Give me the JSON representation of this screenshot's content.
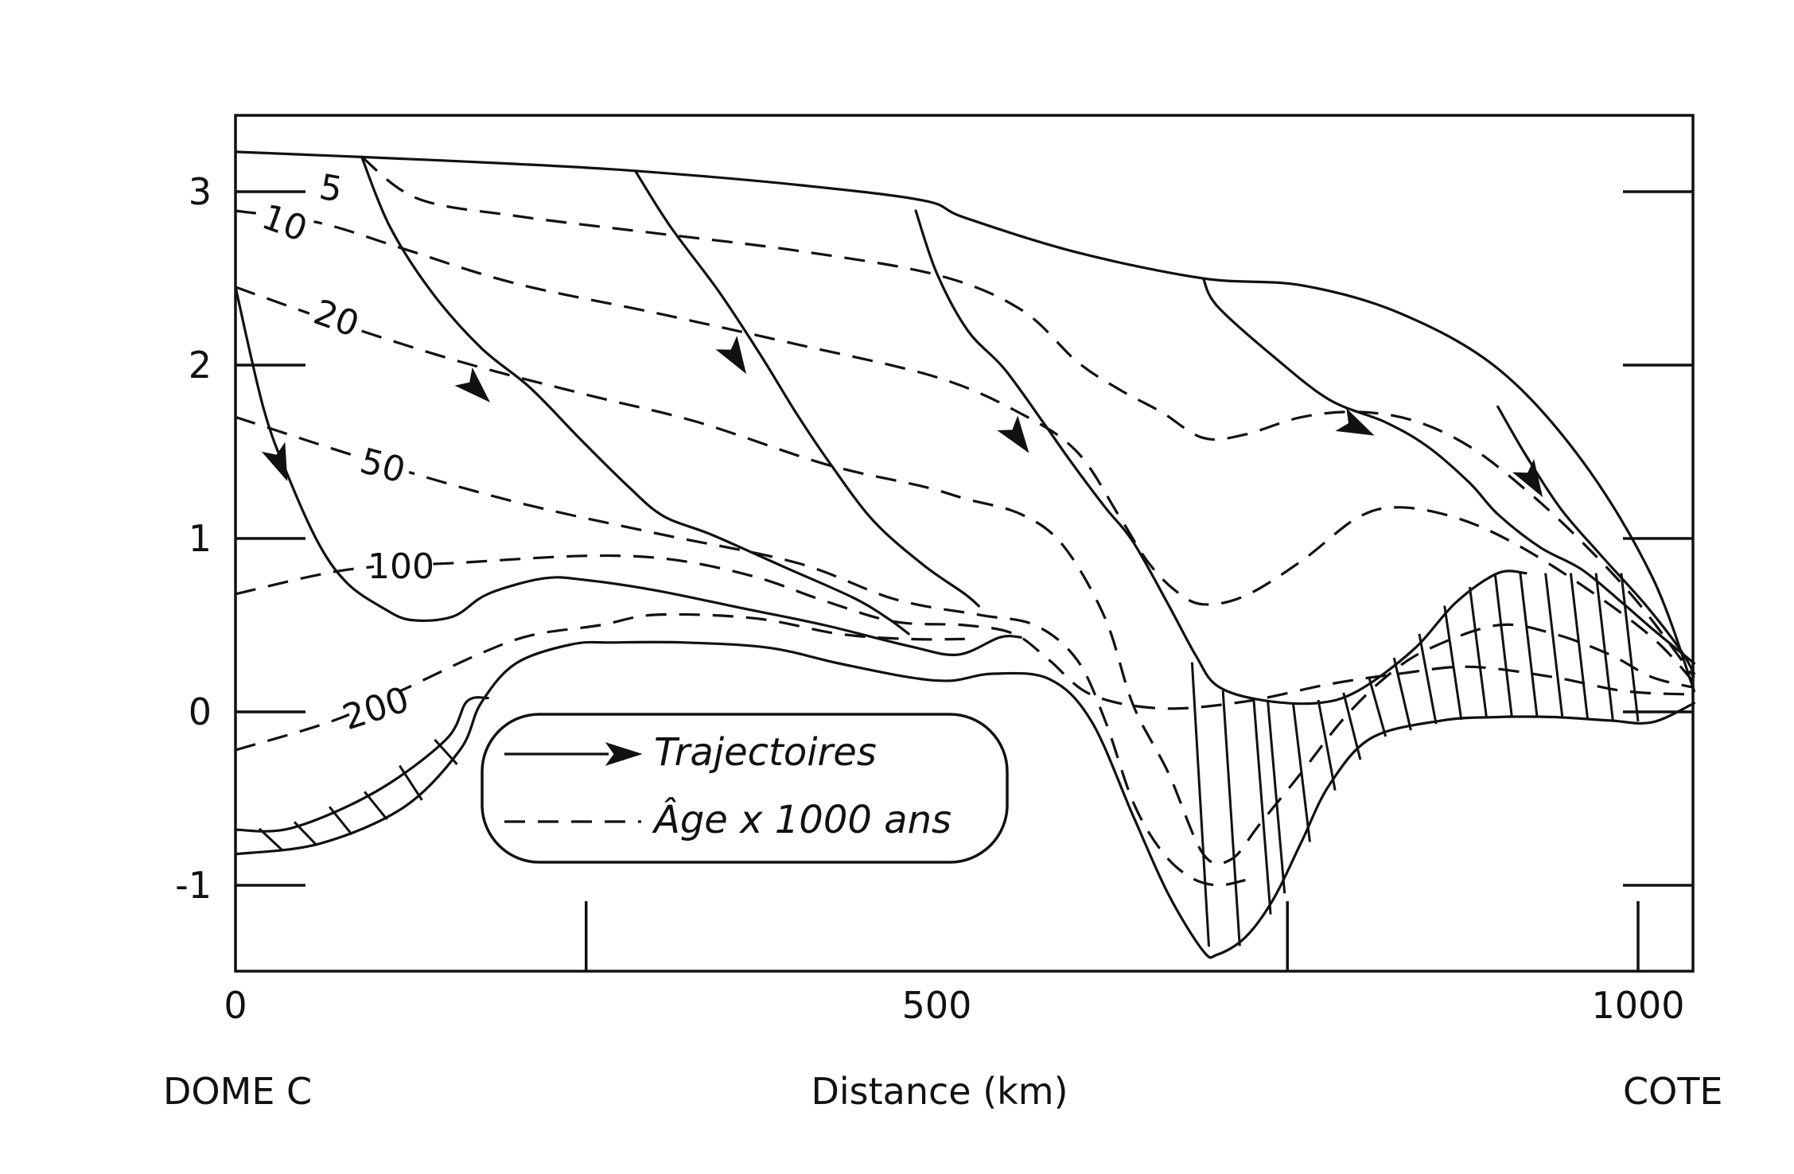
{
  "chart_data": {
    "type": "line",
    "title": "",
    "xlabel": "Distance (km)",
    "ylabel": "",
    "xlim": [
      0,
      1040
    ],
    "ylim": [
      -1.55,
      3.4
    ],
    "x_ticks": [
      0,
      500,
      1000
    ],
    "y_ticks": [
      3,
      2,
      1,
      0,
      -1
    ],
    "x_minor_ticks": [
      250,
      750,
      1000
    ],
    "location_labels": {
      "left": "DOME C",
      "right": "COTE"
    },
    "legend": {
      "placement": "bottom-center",
      "entries": [
        {
          "style": "solid-arrow",
          "label": "Trajectoires"
        },
        {
          "style": "dashed",
          "label": "Âge x 1000 ans"
        }
      ]
    },
    "surface": [
      [
        0,
        3.23
      ],
      [
        90,
        3.2
      ],
      [
        200,
        3.16
      ],
      [
        285,
        3.12
      ],
      [
        400,
        3.04
      ],
      [
        490,
        2.95
      ],
      [
        520,
        2.85
      ],
      [
        600,
        2.65
      ],
      [
        690,
        2.5
      ],
      [
        760,
        2.46
      ],
      [
        830,
        2.3
      ],
      [
        900,
        1.98
      ],
      [
        960,
        1.45
      ],
      [
        1010,
        0.78
      ],
      [
        1040,
        0.12
      ]
    ],
    "bedrock": [
      [
        0,
        -0.82
      ],
      [
        60,
        -0.76
      ],
      [
        120,
        -0.55
      ],
      [
        160,
        -0.22
      ],
      [
        175,
        0.05
      ],
      [
        200,
        0.28
      ],
      [
        240,
        0.39
      ],
      [
        270,
        0.4
      ],
      [
        320,
        0.4
      ],
      [
        380,
        0.37
      ],
      [
        430,
        0.28
      ],
      [
        480,
        0.2
      ],
      [
        510,
        0.18
      ],
      [
        540,
        0.22
      ],
      [
        580,
        0.19
      ],
      [
        610,
        -0.05
      ],
      [
        640,
        -0.6
      ],
      [
        665,
        -1.05
      ],
      [
        690,
        -1.38
      ],
      [
        700,
        -1.4
      ],
      [
        720,
        -1.3
      ],
      [
        740,
        -1.08
      ],
      [
        760,
        -0.75
      ],
      [
        780,
        -0.42
      ],
      [
        810,
        -0.15
      ],
      [
        860,
        -0.05
      ],
      [
        900,
        -0.03
      ],
      [
        940,
        -0.03
      ],
      [
        980,
        -0.05
      ],
      [
        1010,
        -0.06
      ],
      [
        1040,
        0.05
      ]
    ],
    "basal_layer": [
      [
        0,
        -0.68
      ],
      [
        40,
        -0.67
      ],
      [
        100,
        -0.46
      ],
      [
        150,
        -0.16
      ],
      [
        165,
        0.06
      ],
      [
        180,
        0.08
      ]
    ],
    "trajectories": [
      {
        "points": [
          [
            0,
            2.45
          ],
          [
            20,
            1.75
          ],
          [
            38,
            1.35
          ],
          [
            60,
            0.96
          ],
          [
            80,
            0.74
          ],
          [
            105,
            0.6
          ],
          [
            125,
            0.53
          ],
          [
            155,
            0.55
          ],
          [
            180,
            0.68
          ],
          [
            220,
            0.77
          ],
          [
            250,
            0.76
          ],
          [
            300,
            0.7
          ],
          [
            360,
            0.6
          ],
          [
            420,
            0.5
          ],
          [
            480,
            0.38
          ],
          [
            515,
            0.33
          ],
          [
            545,
            0.43
          ],
          [
            560,
            0.43
          ]
        ],
        "arrow_at": [
          32,
          1.43
        ]
      },
      {
        "points": [
          [
            90,
            3.2
          ],
          [
            110,
            2.8
          ],
          [
            140,
            2.42
          ],
          [
            175,
            2.1
          ],
          [
            210,
            1.87
          ],
          [
            245,
            1.58
          ],
          [
            280,
            1.3
          ],
          [
            305,
            1.13
          ],
          [
            340,
            1.02
          ],
          [
            390,
            0.84
          ],
          [
            440,
            0.66
          ],
          [
            465,
            0.54
          ],
          [
            480,
            0.45
          ]
        ],
        "arrow_at": [
          172,
          1.86
        ]
      },
      {
        "points": [
          [
            285,
            3.12
          ],
          [
            310,
            2.8
          ],
          [
            345,
            2.42
          ],
          [
            375,
            2.05
          ],
          [
            400,
            1.72
          ],
          [
            425,
            1.42
          ],
          [
            455,
            1.1
          ],
          [
            490,
            0.85
          ],
          [
            520,
            0.68
          ],
          [
            530,
            0.61
          ]
        ],
        "arrow_at": [
          357,
          2.04
        ]
      },
      {
        "points": [
          [
            485,
            2.89
          ],
          [
            500,
            2.53
          ],
          [
            522,
            2.2
          ],
          [
            548,
            1.98
          ],
          [
            575,
            1.68
          ],
          [
            595,
            1.45
          ],
          [
            620,
            1.18
          ],
          [
            640,
            0.98
          ],
          [
            665,
            0.62
          ],
          [
            685,
            0.32
          ],
          [
            700,
            0.15
          ],
          [
            730,
            0.07
          ],
          [
            770,
            0.05
          ],
          [
            800,
            0.12
          ],
          [
            840,
            0.36
          ],
          [
            870,
            0.63
          ],
          [
            900,
            0.8
          ],
          [
            920,
            0.8
          ]
        ],
        "arrow_at": [
          558,
          1.58
        ]
      },
      {
        "points": [
          [
            690,
            2.5
          ],
          [
            700,
            2.34
          ],
          [
            740,
            2.05
          ],
          [
            780,
            1.8
          ],
          [
            820,
            1.67
          ],
          [
            850,
            1.53
          ],
          [
            880,
            1.32
          ],
          [
            900,
            1.14
          ],
          [
            930,
            0.95
          ],
          [
            960,
            0.82
          ],
          [
            990,
            0.62
          ],
          [
            1010,
            0.48
          ],
          [
            1040,
            0.28
          ]
        ],
        "arrow_at": [
          800,
          1.64
        ]
      },
      {
        "points": [
          [
            900,
            1.76
          ],
          [
            920,
            1.48
          ],
          [
            945,
            1.17
          ],
          [
            975,
            0.89
          ],
          [
            1005,
            0.62
          ],
          [
            1030,
            0.36
          ],
          [
            1040,
            0.22
          ]
        ],
        "arrow_at": [
          925,
          1.33
        ]
      }
    ],
    "isochrones": [
      {
        "label": "5",
        "points": [
          [
            90,
            3.2
          ],
          [
            130,
            2.96
          ],
          [
            200,
            2.86
          ],
          [
            300,
            2.76
          ],
          [
            400,
            2.66
          ],
          [
            500,
            2.52
          ],
          [
            560,
            2.32
          ],
          [
            600,
            2.02
          ],
          [
            630,
            1.86
          ],
          [
            660,
            1.73
          ],
          [
            690,
            1.58
          ],
          [
            720,
            1.6
          ],
          [
            760,
            1.7
          ],
          [
            800,
            1.73
          ],
          [
            840,
            1.68
          ],
          [
            880,
            1.53
          ],
          [
            920,
            1.28
          ],
          [
            960,
            0.98
          ],
          [
            1000,
            0.63
          ],
          [
            1040,
            0.2
          ]
        ]
      },
      {
        "label": "10",
        "points": [
          [
            0,
            2.89
          ],
          [
            60,
            2.82
          ],
          [
            120,
            2.67
          ],
          [
            200,
            2.47
          ],
          [
            300,
            2.3
          ],
          [
            400,
            2.12
          ],
          [
            500,
            1.93
          ],
          [
            560,
            1.72
          ],
          [
            600,
            1.5
          ],
          [
            630,
            1.13
          ],
          [
            650,
            0.87
          ],
          [
            670,
            0.7
          ],
          [
            690,
            0.62
          ],
          [
            720,
            0.67
          ],
          [
            760,
            0.87
          ],
          [
            800,
            1.12
          ],
          [
            830,
            1.18
          ],
          [
            870,
            1.12
          ],
          [
            910,
            0.98
          ],
          [
            960,
            0.73
          ],
          [
            1010,
            0.43
          ],
          [
            1040,
            0.17
          ]
        ]
      },
      {
        "label": "20",
        "points": [
          [
            0,
            2.45
          ],
          [
            70,
            2.25
          ],
          [
            160,
            2.02
          ],
          [
            250,
            1.83
          ],
          [
            330,
            1.67
          ],
          [
            420,
            1.43
          ],
          [
            490,
            1.3
          ],
          [
            520,
            1.23
          ],
          [
            560,
            1.14
          ],
          [
            590,
            0.96
          ],
          [
            620,
            0.54
          ],
          [
            640,
            0.04
          ],
          [
            665,
            -0.35
          ],
          [
            690,
            -0.82
          ],
          [
            710,
            -0.85
          ],
          [
            730,
            -0.65
          ],
          [
            760,
            -0.35
          ],
          [
            790,
            -0.04
          ],
          [
            820,
            0.2
          ],
          [
            850,
            0.36
          ],
          [
            900,
            0.5
          ],
          [
            940,
            0.45
          ],
          [
            980,
            0.33
          ],
          [
            1010,
            0.2
          ],
          [
            1040,
            0.14
          ]
        ]
      },
      {
        "label": "50",
        "points": [
          [
            0,
            1.7
          ],
          [
            100,
            1.44
          ],
          [
            200,
            1.21
          ],
          [
            300,
            1.03
          ],
          [
            400,
            0.86
          ],
          [
            470,
            0.65
          ],
          [
            530,
            0.56
          ],
          [
            570,
            0.5
          ],
          [
            600,
            0.3
          ],
          [
            620,
            -0.05
          ],
          [
            640,
            -0.52
          ],
          [
            660,
            -0.8
          ],
          [
            680,
            -0.95
          ],
          [
            700,
            -1.0
          ],
          [
            720,
            -0.97
          ]
        ]
      },
      {
        "label": "100",
        "points": [
          [
            0,
            0.68
          ],
          [
            80,
            0.82
          ],
          [
            160,
            0.86
          ],
          [
            250,
            0.9
          ],
          [
            310,
            0.88
          ],
          [
            370,
            0.78
          ],
          [
            420,
            0.64
          ],
          [
            470,
            0.52
          ],
          [
            520,
            0.5
          ],
          [
            555,
            0.45
          ],
          [
            580,
            0.3
          ],
          [
            610,
            0.1
          ],
          [
            660,
            0.02
          ],
          [
            720,
            0.06
          ],
          [
            780,
            0.16
          ],
          [
            830,
            0.22
          ],
          [
            880,
            0.26
          ],
          [
            940,
            0.2
          ],
          [
            990,
            0.12
          ],
          [
            1040,
            0.1
          ]
        ]
      },
      {
        "label": "200",
        "points": [
          [
            0,
            -0.22
          ],
          [
            70,
            -0.05
          ],
          [
            120,
            0.13
          ],
          [
            170,
            0.32
          ],
          [
            210,
            0.44
          ],
          [
            260,
            0.5
          ],
          [
            300,
            0.56
          ],
          [
            370,
            0.54
          ],
          [
            430,
            0.45
          ],
          [
            480,
            0.42
          ],
          [
            520,
            0.42
          ]
        ]
      }
    ]
  }
}
